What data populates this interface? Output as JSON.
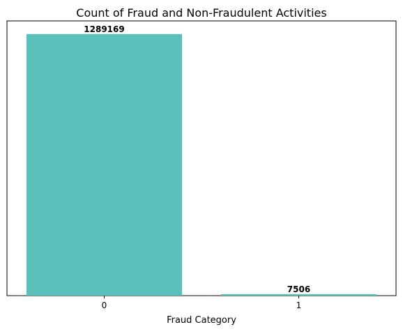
{
  "chart_data": {
    "type": "bar",
    "title": "Count of Fraud and Non-Fraudulent Activities",
    "xlabel": "Fraud Category",
    "ylabel": "",
    "categories": [
      "0",
      "1"
    ],
    "values": [
      1289169,
      7506
    ],
    "data_labels": [
      "1289169",
      "7506"
    ],
    "ylim": [
      0,
      1353627
    ],
    "y_axis_visible": false,
    "grid": false,
    "legend": "none",
    "bar_color": "#5bc0bb"
  }
}
